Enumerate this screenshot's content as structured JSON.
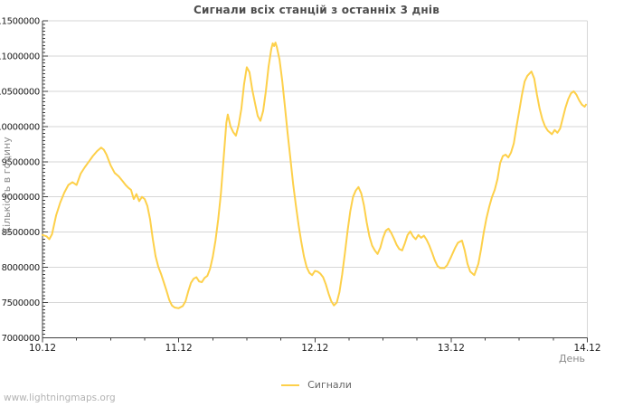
{
  "title": "Сигнали всіх станцій з останніх 3 днів",
  "watermark": "www.lightningmaps.org",
  "legend": [
    {
      "label": "Сигнали",
      "color": "#FDD04A"
    }
  ],
  "colors": {
    "line": "#FDD04A",
    "grid": "#d6d6d6",
    "axis": "#404040",
    "tick_label": "#1a1a1a",
    "axis_title": "#8a8a8a",
    "title": "#4d4d4d",
    "legend_text": "#666666",
    "watermark": "#b3b3b3",
    "background": "#ffffff"
  },
  "chart_data": {
    "type": "line",
    "title": "Сигнали всіх станцій з останніх 3 днів",
    "xlabel": "День",
    "ylabel": "Кількість в годину",
    "legend_position": "bottom-center",
    "grid": "horizontal",
    "x_range_days": [
      0,
      4
    ],
    "x_tick_labels": [
      "10.12",
      "11.12",
      "12.12",
      "13.12",
      "14.12"
    ],
    "x_minor_tick_step_days": 0.25,
    "ylim": [
      7000000,
      11500000
    ],
    "y_tick_step": 500000,
    "y_minor_tick_step": 50000,
    "y_tick_labels": [
      "7000000",
      "7500000",
      "8000000",
      "8500000",
      "9000000",
      "9500000",
      "10000000",
      "10500000",
      "11000000",
      "11500000"
    ],
    "value_scale": 1000000,
    "series": [
      {
        "name": "Сигнали",
        "color": "#FDD04A",
        "points": [
          [
            0.0,
            8.46
          ],
          [
            0.03,
            8.44
          ],
          [
            0.05,
            8.4
          ],
          [
            0.07,
            8.47
          ],
          [
            0.1,
            8.74
          ],
          [
            0.13,
            8.92
          ],
          [
            0.16,
            9.06
          ],
          [
            0.19,
            9.17
          ],
          [
            0.22,
            9.21
          ],
          [
            0.25,
            9.17
          ],
          [
            0.28,
            9.33
          ],
          [
            0.31,
            9.42
          ],
          [
            0.34,
            9.5
          ],
          [
            0.37,
            9.58
          ],
          [
            0.4,
            9.65
          ],
          [
            0.43,
            9.7
          ],
          [
            0.45,
            9.67
          ],
          [
            0.47,
            9.6
          ],
          [
            0.5,
            9.45
          ],
          [
            0.53,
            9.34
          ],
          [
            0.56,
            9.29
          ],
          [
            0.59,
            9.22
          ],
          [
            0.61,
            9.17
          ],
          [
            0.63,
            9.13
          ],
          [
            0.65,
            9.1
          ],
          [
            0.67,
            8.97
          ],
          [
            0.69,
            9.04
          ],
          [
            0.71,
            8.94
          ],
          [
            0.73,
            9.0
          ],
          [
            0.75,
            8.97
          ],
          [
            0.77,
            8.87
          ],
          [
            0.79,
            8.68
          ],
          [
            0.81,
            8.4
          ],
          [
            0.83,
            8.16
          ],
          [
            0.85,
            8.01
          ],
          [
            0.87,
            7.91
          ],
          [
            0.89,
            7.79
          ],
          [
            0.91,
            7.67
          ],
          [
            0.93,
            7.54
          ],
          [
            0.95,
            7.46
          ],
          [
            0.97,
            7.43
          ],
          [
            1.0,
            7.42
          ],
          [
            1.03,
            7.45
          ],
          [
            1.05,
            7.52
          ],
          [
            1.07,
            7.66
          ],
          [
            1.09,
            7.78
          ],
          [
            1.11,
            7.84
          ],
          [
            1.13,
            7.86
          ],
          [
            1.15,
            7.8
          ],
          [
            1.17,
            7.79
          ],
          [
            1.19,
            7.85
          ],
          [
            1.21,
            7.88
          ],
          [
            1.23,
            7.98
          ],
          [
            1.25,
            8.15
          ],
          [
            1.27,
            8.38
          ],
          [
            1.29,
            8.68
          ],
          [
            1.31,
            9.05
          ],
          [
            1.33,
            9.55
          ],
          [
            1.35,
            10.05
          ],
          [
            1.36,
            10.17
          ],
          [
            1.38,
            10.0
          ],
          [
            1.4,
            9.92
          ],
          [
            1.42,
            9.87
          ],
          [
            1.44,
            10.02
          ],
          [
            1.46,
            10.25
          ],
          [
            1.48,
            10.6
          ],
          [
            1.5,
            10.84
          ],
          [
            1.52,
            10.77
          ],
          [
            1.54,
            10.52
          ],
          [
            1.56,
            10.33
          ],
          [
            1.58,
            10.15
          ],
          [
            1.6,
            10.08
          ],
          [
            1.62,
            10.22
          ],
          [
            1.64,
            10.5
          ],
          [
            1.66,
            10.85
          ],
          [
            1.68,
            11.1
          ],
          [
            1.69,
            11.18
          ],
          [
            1.7,
            11.14
          ],
          [
            1.71,
            11.19
          ],
          [
            1.72,
            11.13
          ],
          [
            1.74,
            10.95
          ],
          [
            1.76,
            10.65
          ],
          [
            1.78,
            10.28
          ],
          [
            1.8,
            9.9
          ],
          [
            1.82,
            9.55
          ],
          [
            1.84,
            9.18
          ],
          [
            1.86,
            8.88
          ],
          [
            1.88,
            8.6
          ],
          [
            1.9,
            8.36
          ],
          [
            1.92,
            8.15
          ],
          [
            1.94,
            8.0
          ],
          [
            1.96,
            7.92
          ],
          [
            1.98,
            7.89
          ],
          [
            2.0,
            7.95
          ],
          [
            2.02,
            7.94
          ],
          [
            2.04,
            7.91
          ],
          [
            2.06,
            7.86
          ],
          [
            2.08,
            7.76
          ],
          [
            2.1,
            7.63
          ],
          [
            2.12,
            7.52
          ],
          [
            2.14,
            7.46
          ],
          [
            2.16,
            7.5
          ],
          [
            2.18,
            7.65
          ],
          [
            2.2,
            7.9
          ],
          [
            2.22,
            8.2
          ],
          [
            2.24,
            8.52
          ],
          [
            2.26,
            8.8
          ],
          [
            2.28,
            9.0
          ],
          [
            2.3,
            9.09
          ],
          [
            2.32,
            9.14
          ],
          [
            2.34,
            9.05
          ],
          [
            2.36,
            8.88
          ],
          [
            2.38,
            8.64
          ],
          [
            2.4,
            8.44
          ],
          [
            2.42,
            8.31
          ],
          [
            2.44,
            8.24
          ],
          [
            2.46,
            8.19
          ],
          [
            2.48,
            8.28
          ],
          [
            2.5,
            8.42
          ],
          [
            2.52,
            8.52
          ],
          [
            2.54,
            8.55
          ],
          [
            2.56,
            8.49
          ],
          [
            2.58,
            8.41
          ],
          [
            2.6,
            8.32
          ],
          [
            2.62,
            8.26
          ],
          [
            2.64,
            8.24
          ],
          [
            2.66,
            8.34
          ],
          [
            2.68,
            8.46
          ],
          [
            2.7,
            8.51
          ],
          [
            2.72,
            8.44
          ],
          [
            2.74,
            8.4
          ],
          [
            2.76,
            8.46
          ],
          [
            2.78,
            8.42
          ],
          [
            2.8,
            8.45
          ],
          [
            2.82,
            8.39
          ],
          [
            2.84,
            8.31
          ],
          [
            2.86,
            8.21
          ],
          [
            2.88,
            8.1
          ],
          [
            2.9,
            8.02
          ],
          [
            2.92,
            7.99
          ],
          [
            2.95,
            7.99
          ],
          [
            2.97,
            8.03
          ],
          [
            3.0,
            8.15
          ],
          [
            3.03,
            8.28
          ],
          [
            3.05,
            8.35
          ],
          [
            3.08,
            8.38
          ],
          [
            3.1,
            8.24
          ],
          [
            3.12,
            8.05
          ],
          [
            3.14,
            7.94
          ],
          [
            3.17,
            7.89
          ],
          [
            3.2,
            8.05
          ],
          [
            3.22,
            8.26
          ],
          [
            3.24,
            8.5
          ],
          [
            3.26,
            8.7
          ],
          [
            3.28,
            8.86
          ],
          [
            3.3,
            9.0
          ],
          [
            3.32,
            9.1
          ],
          [
            3.34,
            9.25
          ],
          [
            3.36,
            9.48
          ],
          [
            3.38,
            9.58
          ],
          [
            3.4,
            9.6
          ],
          [
            3.42,
            9.56
          ],
          [
            3.44,
            9.63
          ],
          [
            3.46,
            9.76
          ],
          [
            3.48,
            10.0
          ],
          [
            3.5,
            10.22
          ],
          [
            3.52,
            10.45
          ],
          [
            3.54,
            10.64
          ],
          [
            3.56,
            10.72
          ],
          [
            3.59,
            10.78
          ],
          [
            3.61,
            10.68
          ],
          [
            3.63,
            10.45
          ],
          [
            3.65,
            10.25
          ],
          [
            3.67,
            10.1
          ],
          [
            3.69,
            10.0
          ],
          [
            3.71,
            9.94
          ],
          [
            3.74,
            9.89
          ],
          [
            3.76,
            9.95
          ],
          [
            3.78,
            9.91
          ],
          [
            3.8,
            9.97
          ],
          [
            3.82,
            10.12
          ],
          [
            3.84,
            10.27
          ],
          [
            3.86,
            10.39
          ],
          [
            3.88,
            10.47
          ],
          [
            3.9,
            10.5
          ],
          [
            3.92,
            10.45
          ],
          [
            3.94,
            10.37
          ],
          [
            3.96,
            10.31
          ],
          [
            3.98,
            10.28
          ],
          [
            3.99,
            10.31
          ]
        ]
      }
    ]
  }
}
